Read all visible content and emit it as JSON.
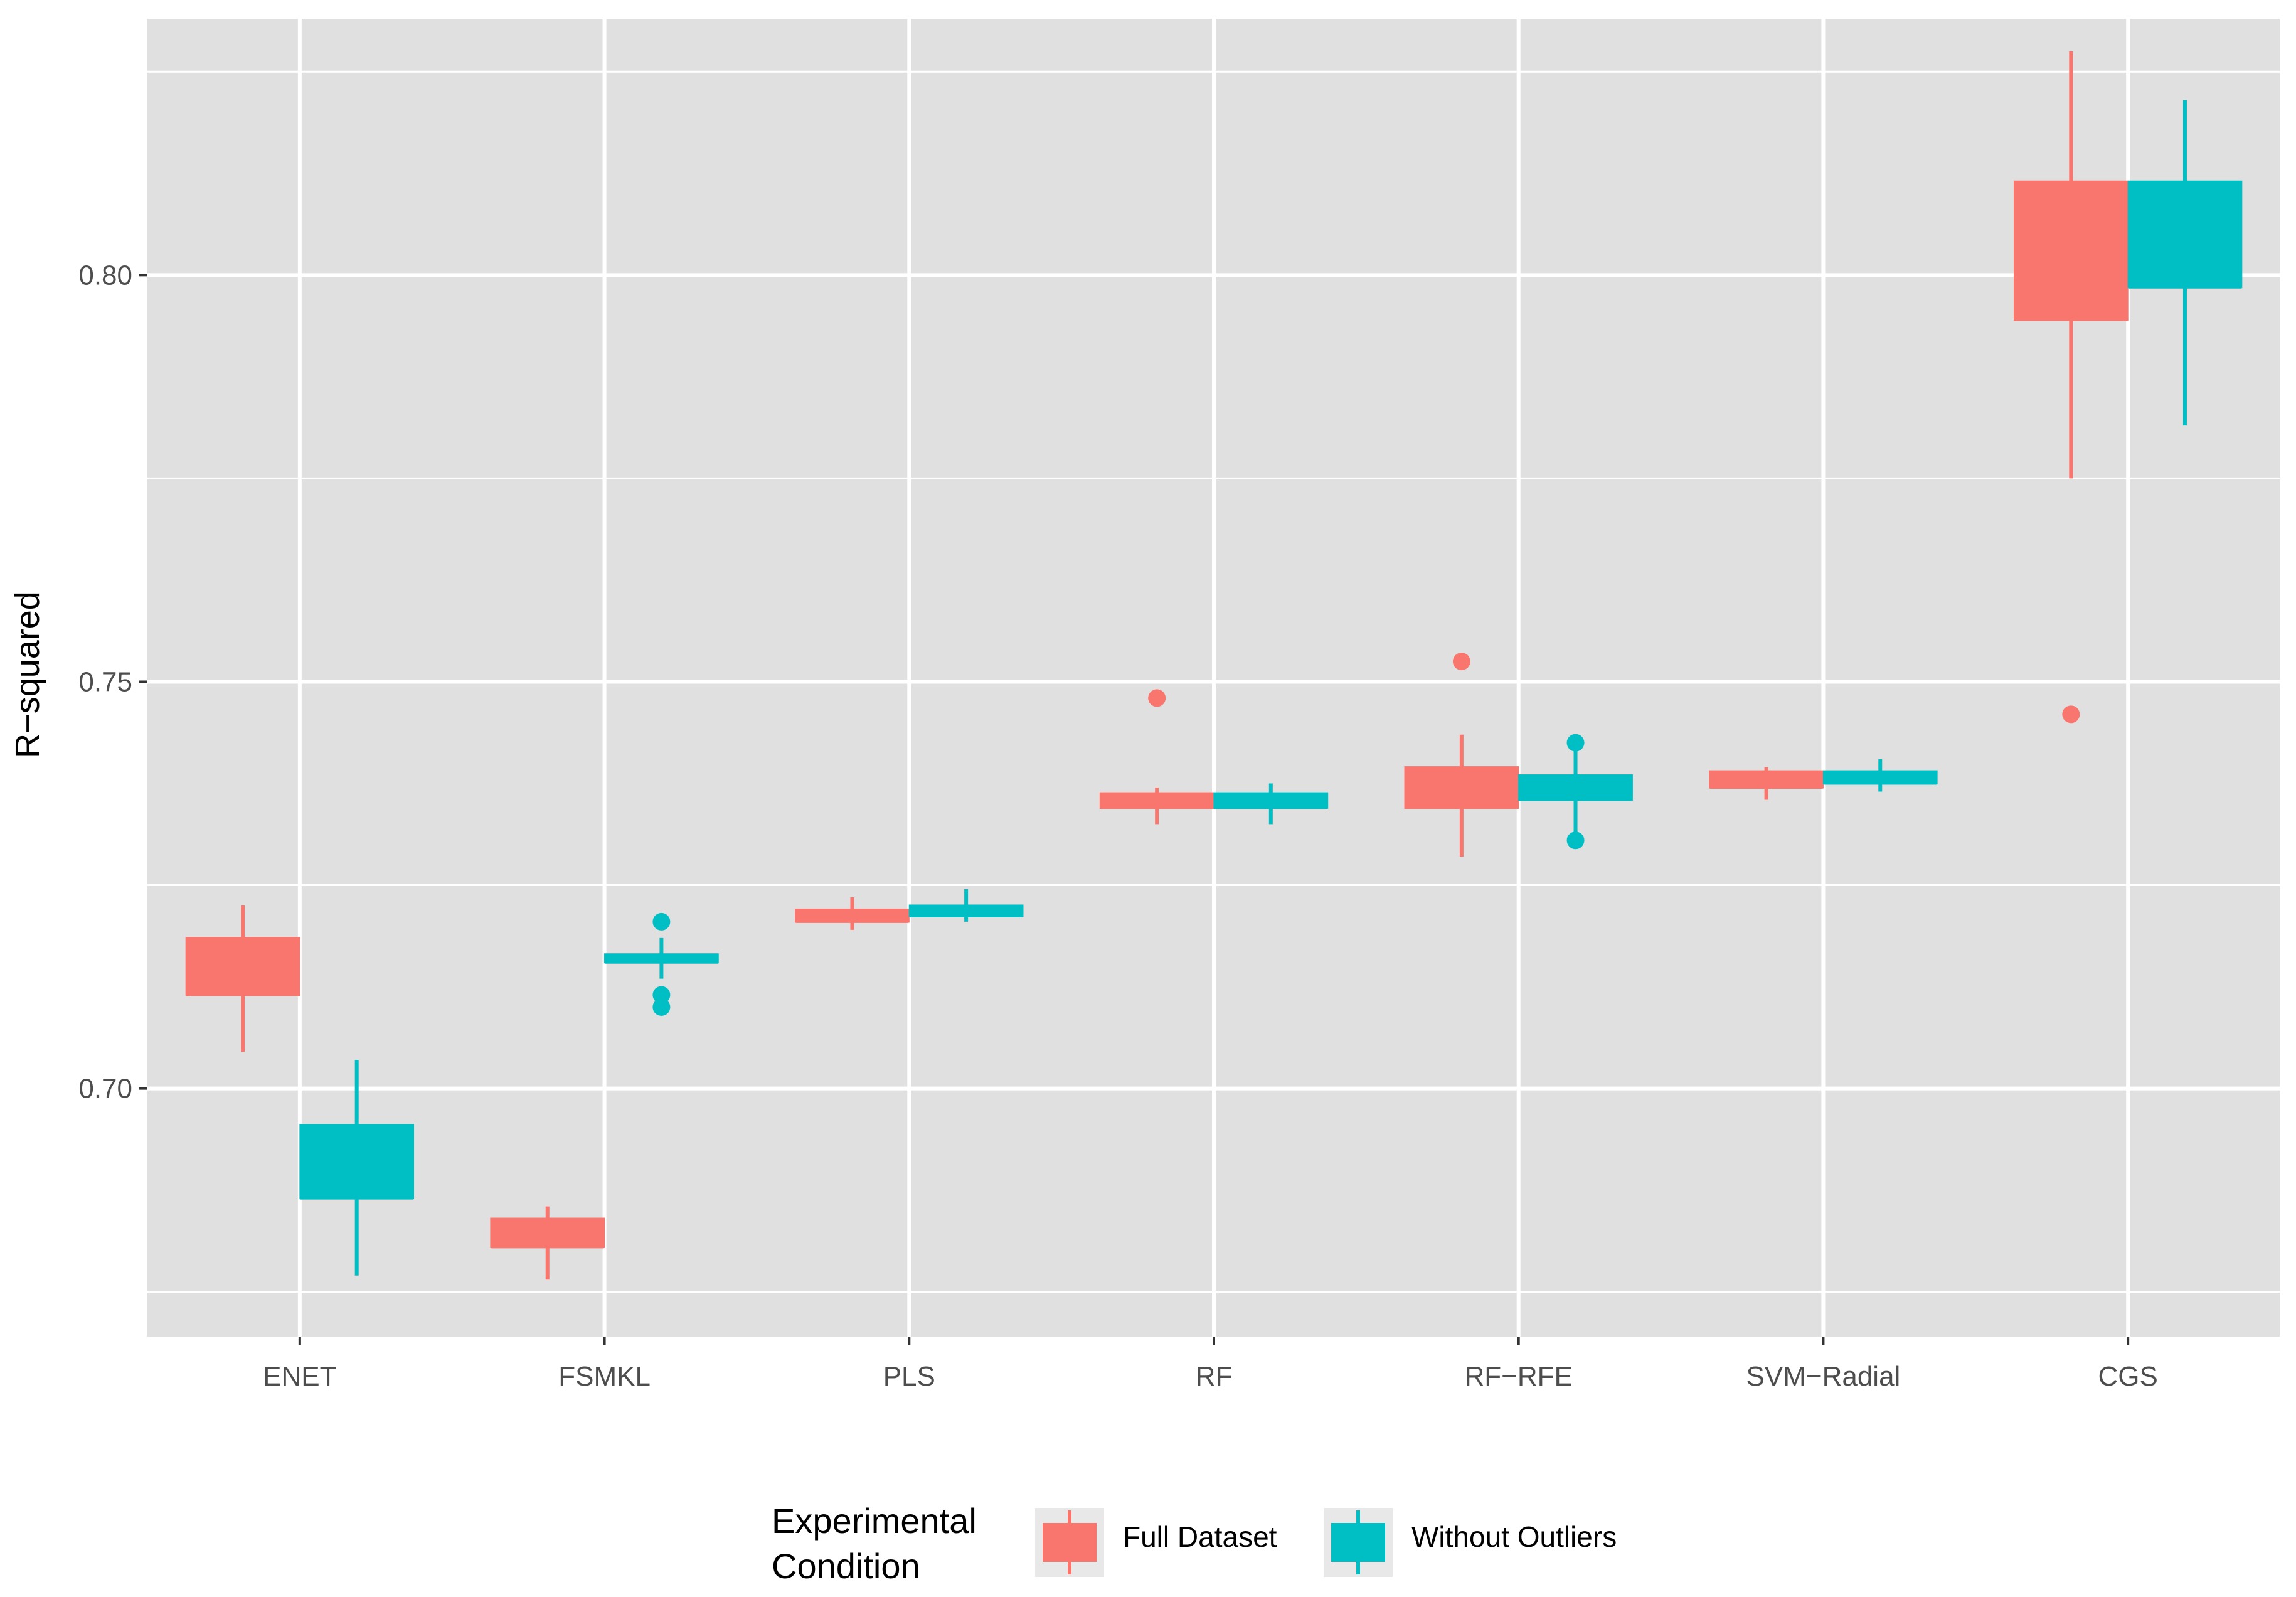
{
  "chart_data": {
    "type": "boxplot",
    "title": "",
    "xlabel": "",
    "ylabel": "R−squared",
    "ylim": [
      0.6695,
      0.8315
    ],
    "yticks": [
      0.7,
      0.75,
      0.8
    ],
    "ytick_labels": [
      "0.70",
      "0.75",
      "0.80"
    ],
    "minor_yticks": [
      0.675,
      0.725,
      0.775,
      0.825
    ],
    "grid": true,
    "categories": [
      "ENET",
      "FSMKL",
      "PLS",
      "RF",
      "RF−RFE",
      "SVM−Radial",
      "CGS"
    ],
    "legend": {
      "title_line1": "Experimental",
      "title_line2": "Condition",
      "position": "bottom"
    },
    "colors": {
      "full": "#F8766D",
      "without": "#00BFC4",
      "panel": "#E0E0E0",
      "grid": "#FFFFFF"
    },
    "series": [
      {
        "name": "Full Dataset",
        "color": "#F8766D",
        "boxes": [
          {
            "category": "ENET",
            "whisker_low": 0.7045,
            "q1": 0.7115,
            "median": 0.7115,
            "q3": 0.7185,
            "whisker_high": 0.7225,
            "outliers": []
          },
          {
            "category": "FSMKL",
            "whisker_low": 0.6765,
            "q1": 0.6805,
            "median": 0.6805,
            "q3": 0.684,
            "whisker_high": 0.6855,
            "outliers": []
          },
          {
            "category": "PLS",
            "whisker_low": 0.7195,
            "q1": 0.7205,
            "median": 0.7205,
            "q3": 0.722,
            "whisker_high": 0.7235,
            "outliers": []
          },
          {
            "category": "RF",
            "whisker_low": 0.7325,
            "q1": 0.7345,
            "median": 0.7345,
            "q3": 0.7363,
            "whisker_high": 0.737,
            "outliers": [
              0.748
            ]
          },
          {
            "category": "RF−RFE",
            "whisker_low": 0.7285,
            "q1": 0.7345,
            "median": 0.7345,
            "q3": 0.7395,
            "whisker_high": 0.7435,
            "outliers": [
              0.7525
            ]
          },
          {
            "category": "SVM−Radial",
            "whisker_low": 0.7355,
            "q1": 0.737,
            "median": 0.737,
            "q3": 0.739,
            "whisker_high": 0.7395,
            "outliers": []
          },
          {
            "category": "CGS",
            "whisker_low": 0.775,
            "q1": 0.7945,
            "median": 0.7945,
            "q3": 0.8115,
            "whisker_high": 0.8275,
            "outliers": [
              0.746
            ]
          }
        ]
      },
      {
        "name": "Without Outliers",
        "color": "#00BFC4",
        "boxes": [
          {
            "category": "ENET",
            "whisker_low": 0.677,
            "q1": 0.6865,
            "median": 0.6865,
            "q3": 0.6955,
            "whisker_high": 0.7035,
            "outliers": []
          },
          {
            "category": "FSMKL",
            "whisker_low": 0.7135,
            "q1": 0.7155,
            "median": 0.7155,
            "q3": 0.7165,
            "whisker_high": 0.7185,
            "outliers": [
              0.7205,
              0.7115,
              0.71
            ]
          },
          {
            "category": "PLS",
            "whisker_low": 0.7205,
            "q1": 0.7212,
            "median": 0.7212,
            "q3": 0.7225,
            "whisker_high": 0.7245,
            "outliers": []
          },
          {
            "category": "RF",
            "whisker_low": 0.7325,
            "q1": 0.7345,
            "median": 0.7345,
            "q3": 0.7363,
            "whisker_high": 0.7375,
            "outliers": []
          },
          {
            "category": "RF−RFE",
            "whisker_low": 0.7315,
            "q1": 0.7355,
            "median": 0.7355,
            "q3": 0.7385,
            "whisker_high": 0.7415,
            "outliers": [
              0.7425,
              0.7305
            ]
          },
          {
            "category": "SVM−Radial",
            "whisker_low": 0.7365,
            "q1": 0.7375,
            "median": 0.7375,
            "q3": 0.739,
            "whisker_high": 0.7405,
            "outliers": []
          },
          {
            "category": "CGS",
            "whisker_low": 0.7815,
            "q1": 0.7985,
            "median": 0.7985,
            "q3": 0.8115,
            "whisker_high": 0.8215,
            "outliers": []
          }
        ]
      }
    ]
  }
}
